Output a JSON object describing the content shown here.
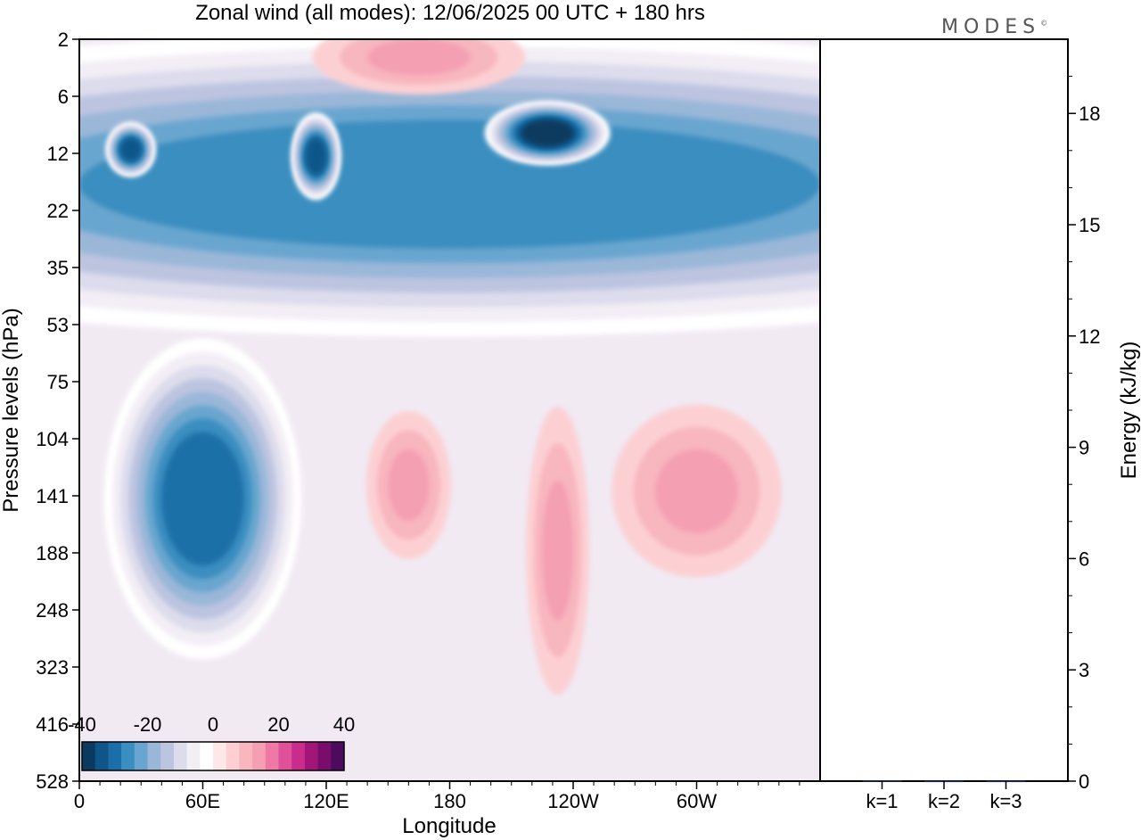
{
  "title": "Zonal wind (all modes):  12/06/2025  00 UTC  + 180 hrs",
  "logo": "MODES",
  "logo_mark": "©",
  "chart_data": [
    {
      "type": "heatmap",
      "title": "Zonal wind (all modes):  12/06/2025  00 UTC  + 180 hrs",
      "xlabel": "Longitude",
      "ylabel": "Pressure levels (hPa)",
      "x_ticks": [
        {
          "label": "0",
          "lon": 0
        },
        {
          "label": "60E",
          "lon": 60
        },
        {
          "label": "120E",
          "lon": 120
        },
        {
          "label": "180",
          "lon": 180
        },
        {
          "label": "120W",
          "lon": 240
        },
        {
          "label": "60W",
          "lon": 300
        }
      ],
      "xlim": [
        0,
        360
      ],
      "y_ticks": [
        2,
        6,
        12,
        22,
        35,
        53,
        75,
        104,
        141,
        188,
        248,
        323,
        416,
        528
      ],
      "colorbar": {
        "ticks": [
          -40,
          -20,
          0,
          20,
          40
        ],
        "range": [
          -40,
          40
        ],
        "colors": [
          "#0b3a5f",
          "#0e5689",
          "#1a6fa8",
          "#3b8ec0",
          "#69a6cf",
          "#9ab7d8",
          "#bcc4e0",
          "#dcdcec",
          "#f3eef5",
          "#ffffff",
          "#fde7e7",
          "#fcd0d3",
          "#f8b6be",
          "#f49fb2",
          "#ee78a6",
          "#e0519a",
          "#c92c8a",
          "#a21677",
          "#7a0d6c",
          "#4e0a5e"
        ]
      },
      "features": [
        {
          "desc": "stratospheric easterly band",
          "lon": [
            0,
            360
          ],
          "p_hPa": [
            8,
            30
          ],
          "u": -28
        },
        {
          "desc": "easterly core",
          "lon": [
            20,
            30
          ],
          "p_hPa": [
            10,
            13
          ],
          "u": -36
        },
        {
          "desc": "easterly core",
          "lon": [
            110,
            120
          ],
          "p_hPa": [
            10,
            15
          ],
          "u": -36
        },
        {
          "desc": "easterly core",
          "lon": [
            215,
            240
          ],
          "p_hPa": [
            8,
            11
          ],
          "u": -38
        },
        {
          "desc": "tropospheric easterly jet",
          "lon": [
            40,
            80
          ],
          "p_hPa": [
            100,
            200
          ],
          "u": -32
        },
        {
          "desc": "westerly maximum",
          "lon": [
            150,
            170
          ],
          "p_hPa": [
            110,
            160
          ],
          "u": 12
        },
        {
          "desc": "westerly maximum",
          "lon": [
            225,
            240
          ],
          "p_hPa": [
            130,
            260
          ],
          "u": 12
        },
        {
          "desc": "westerly maximum",
          "lon": [
            280,
            320
          ],
          "p_hPa": [
            110,
            170
          ],
          "u": 12
        },
        {
          "desc": "upper westerly",
          "lon": [
            140,
            190
          ],
          "p_hPa": [
            2,
            4
          ],
          "u": 12
        }
      ]
    },
    {
      "type": "bar",
      "ylabel": "Energy (kJ/kg)",
      "categories": [
        "k=1",
        "k=2",
        "k=3"
      ],
      "values": [
        0.02,
        0.01,
        0.01
      ],
      "ylim": [
        0,
        20
      ],
      "y_ticks": [
        0,
        3,
        6,
        9,
        12,
        15,
        18
      ]
    }
  ]
}
